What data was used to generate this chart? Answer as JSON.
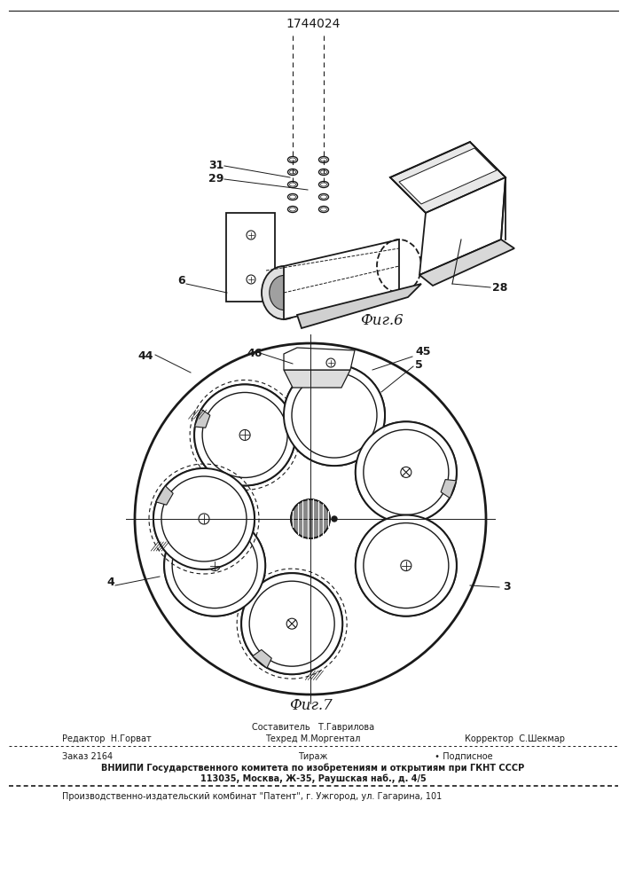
{
  "patent_number": "1744024",
  "fig6_label": "Фиг.6",
  "fig7_label": "Фиг.7",
  "bg_color": "#ffffff",
  "line_color": "#1a1a1a",
  "footer": {
    "sestavitel": "Составитель   Т.Гаврилова",
    "redaktor": "Редактор  Н.Горват",
    "tehred": "Техред М.Моргентал",
    "korrektor": "Корректор  С.Шекмар",
    "zakaz": "Заказ 2164",
    "tirazh": "Тираж",
    "podpisnoe": "∙ Подписное",
    "vniipи": "ВНИИПИ Государственного комитета по изобретениям и открытиям при ГКНТ СССР",
    "address": "113035, Москва, Ж-35, Раушская наб., д. 4/5",
    "patent_firm": "Производственно-издательский комбинат \"Патент\", г. Ужгород, ул. Гагарина, 101"
  }
}
